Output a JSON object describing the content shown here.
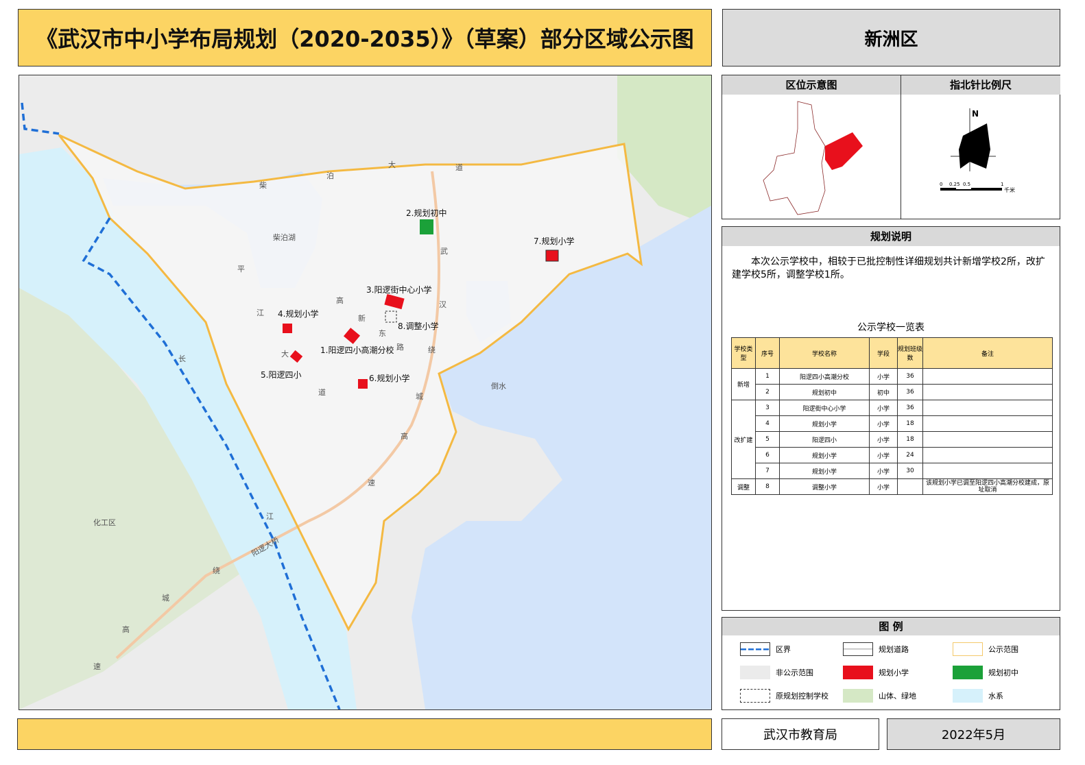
{
  "title": "《武汉市中小学布局规划（2020-2035）》（草案）部分区域公示图",
  "district": "新洲区",
  "inset": {
    "location_title": "区位示意图",
    "compass_title": "指北针比例尺",
    "north": "N",
    "scale_ticks": [
      "0",
      "0.25",
      "0.5",
      "1"
    ],
    "scale_unit": "千米"
  },
  "notes": {
    "title": "规划说明",
    "text": "本次公示学校中，相较于已批控制性详细规划共计新增学校2所，改扩建学校5所，调整学校1所。"
  },
  "table": {
    "caption": "公示学校一览表",
    "headers": [
      "学校类型",
      "序号",
      "学校名称",
      "学段",
      "规划班级数",
      "备注"
    ],
    "rows": [
      {
        "type": "新增",
        "no": "1",
        "name": "阳逻四小高潮分校",
        "stage": "小学",
        "classes": "36",
        "note": ""
      },
      {
        "type": "",
        "no": "2",
        "name": "规划初中",
        "stage": "初中",
        "classes": "36",
        "note": ""
      },
      {
        "type": "改扩建",
        "no": "3",
        "name": "阳逻街中心小学",
        "stage": "小学",
        "classes": "36",
        "note": ""
      },
      {
        "type": "",
        "no": "4",
        "name": "规划小学",
        "stage": "小学",
        "classes": "18",
        "note": ""
      },
      {
        "type": "",
        "no": "5",
        "name": "阳逻四小",
        "stage": "小学",
        "classes": "18",
        "note": ""
      },
      {
        "type": "",
        "no": "6",
        "name": "规划小学",
        "stage": "小学",
        "classes": "24",
        "note": ""
      },
      {
        "type": "",
        "no": "7",
        "name": "规划小学",
        "stage": "小学",
        "classes": "30",
        "note": ""
      },
      {
        "type": "调整",
        "no": "8",
        "name": "调整小学",
        "stage": "小学",
        "classes": "",
        "note": "该规划小学已调至阳逻四小高潮分校建成，原址取消"
      }
    ]
  },
  "legend": {
    "title": "图 例",
    "items": [
      "区界",
      "规划道路",
      "公示范围",
      "非公示范围",
      "规划小学",
      "规划初中",
      "原规划控制学校",
      "山体、绿地",
      "水系"
    ]
  },
  "colors": {
    "title_bg": "#fcd463",
    "primary_school": "#e8101c",
    "middle_school": "#1ba139",
    "boundary": "#f4b942",
    "district_line": "#1f6fd6",
    "water": "#d6f1fb",
    "green": "#d5e8c5"
  },
  "map": {
    "schools": [
      "1.阳逻四小高潮分校",
      "2.规划初中",
      "3.阳逻街中心小学",
      "4.规划小学",
      "5.阳逻四小",
      "6.规划小学",
      "7.规划小学",
      "8.调整小学"
    ],
    "places": [
      "柴泊湖",
      "倒水",
      "化工区",
      "阳逻大桥"
    ],
    "road_chars": [
      "大",
      "泊",
      "道",
      "柴",
      "平",
      "江",
      "大",
      "道",
      "武",
      "汉",
      "绕",
      "城",
      "高",
      "速",
      "高",
      "新",
      "东",
      "路",
      "长",
      "江",
      "绕",
      "城",
      "高",
      "速"
    ]
  },
  "footer": {
    "org": "武汉市教育局",
    "date": "2022年5月"
  }
}
